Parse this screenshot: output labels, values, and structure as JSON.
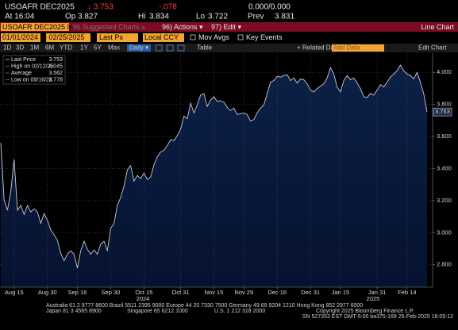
{
  "header": {
    "ticker": "USOAFR DEC2025",
    "last": "↓ 3.753",
    "change": "-.078",
    "bid_ask": "0.000/0.000",
    "time": "At 16:04",
    "open_label": "Op",
    "open": "3.827",
    "high_label": "Hi",
    "high": "3.834",
    "low_label": "Lo",
    "low": "3.722",
    "prev_label": "Prev",
    "prev": "3.831"
  },
  "menu_bar": {
    "security": "USOAFR DEC2025 In",
    "suggested": "96 Suggested Charts »",
    "actions": "96) Actions ▾",
    "edit": "97) Edit ▾",
    "view": "Line Chart"
  },
  "range_bar": {
    "start": "01/01/2024",
    "end": "- 02/25/2025",
    "field": "Last Px",
    "currency": "Local CCY",
    "mov_avgs": "Mov Avgs",
    "key_events": "Key Events"
  },
  "period_bar": {
    "periods": [
      "1D",
      "3D",
      "1M",
      "6M",
      "YTD",
      "1Y",
      "5Y",
      "Max"
    ],
    "frequency": "Daily ▾",
    "table": "Table",
    "related": "+ Related Dat",
    "add_data": "Add Data",
    "edit_chart": "Edit Chart"
  },
  "chart_data": {
    "type": "area",
    "color": "#c8ccd4",
    "fill": "#0c2046",
    "legend_stats": [
      {
        "label": "Last Price",
        "value": 3.753
      },
      {
        "label": "High on 02/12/25",
        "value": 4.045
      },
      {
        "label": "Average",
        "value": 3.562
      },
      {
        "label": "Low on 09/16/24",
        "value": 2.778
      }
    ],
    "categories": [
      null,
      null,
      null,
      null,
      "Aug 15",
      null,
      null,
      null,
      null,
      null,
      null,
      null,
      null,
      null,
      "Aug 30",
      null,
      null,
      null,
      null,
      null,
      null,
      null,
      null,
      "Sep 16",
      null,
      null,
      null,
      null,
      null,
      null,
      null,
      null,
      null,
      "Sep 30",
      null,
      null,
      null,
      null,
      null,
      null,
      null,
      null,
      null,
      "Oct 15",
      null,
      null,
      null,
      null,
      null,
      null,
      null,
      null,
      null,
      null,
      "Oct 31",
      null,
      null,
      null,
      null,
      null,
      null,
      null,
      null,
      null,
      "Nov 15",
      null,
      null,
      null,
      null,
      null,
      null,
      null,
      null,
      "Nov 29",
      null,
      null,
      null,
      null,
      null,
      null,
      null,
      null,
      null,
      "Dec 16",
      null,
      null,
      null,
      null,
      null,
      null,
      null,
      null,
      null,
      "Dec 31",
      null,
      null,
      null,
      null,
      null,
      null,
      null,
      null,
      "Jan 15",
      null,
      null,
      null,
      null,
      null,
      null,
      null,
      null,
      null,
      null,
      "Jan 31",
      null,
      null,
      null,
      null,
      null,
      null,
      null,
      null,
      "Feb 14",
      null,
      null,
      null,
      null,
      null,
      null
    ],
    "values": [
      3.56,
      3.205,
      3.14,
      3.256,
      3.458,
      3.14,
      3.17,
      3.114,
      3.17,
      3.129,
      3.149,
      3.129,
      3.058,
      3.119,
      3.078,
      3.018,
      2.987,
      2.952,
      2.871,
      2.825,
      2.866,
      2.886,
      2.866,
      2.778,
      2.886,
      2.947,
      2.896,
      2.866,
      2.891,
      2.866,
      2.927,
      2.947,
      2.886,
      3.028,
      3.058,
      3.17,
      3.22,
      3.291,
      3.392,
      3.418,
      3.322,
      3.357,
      3.337,
      3.372,
      3.332,
      3.347,
      3.423,
      3.473,
      3.504,
      3.514,
      3.544,
      3.58,
      3.575,
      3.605,
      3.646,
      3.727,
      3.711,
      3.808,
      3.747,
      3.797,
      3.858,
      3.868,
      3.787,
      3.828,
      3.848,
      3.818,
      3.823,
      3.813,
      3.782,
      3.762,
      3.777,
      3.737,
      3.742,
      3.747,
      3.737,
      3.696,
      3.706,
      3.747,
      3.777,
      3.797,
      3.868,
      3.939,
      3.949,
      3.975,
      3.97,
      3.98,
      3.985,
      3.949,
      3.965,
      3.934,
      3.959,
      3.954,
      3.929,
      3.889,
      3.878,
      3.899,
      3.914,
      3.929,
      3.965,
      4.03,
      3.99,
      3.909,
      3.878,
      3.949,
      3.98,
      3.954,
      3.965,
      3.934,
      3.899,
      3.848,
      3.843,
      3.868,
      3.858,
      3.889,
      3.924,
      3.909,
      3.939,
      3.97,
      3.99,
      4.01,
      4.045,
      4.01,
      3.99,
      3.98,
      3.959,
      4.0,
      3.939,
      3.868,
      3.753
    ],
    "year_labels": [
      "2024",
      "2025"
    ],
    "ylim": [
      2.66,
      4.12
    ],
    "yticks": [
      {
        "value": 2.8,
        "label": "2.800"
      },
      {
        "value": 3.0,
        "label": "3.000"
      },
      {
        "value": 3.2,
        "label": "3.200"
      },
      {
        "value": 3.4,
        "label": "3.400"
      },
      {
        "value": 3.6,
        "label": "3.600"
      },
      {
        "value": 3.8,
        "label": "3.800"
      },
      {
        "value": 4.0,
        "label": "4.000"
      }
    ],
    "grid": true
  },
  "footer": {
    "line1": "Australia 61 2 9777 8600 Brazil 5511 2395 9000 Europe 44 20 7330 7500 Germany 49 69 9204 1210 Hong Kong 852 2977 6000",
    "line2a": "Japan 81 3 4565 8900",
    "line2b": "Singapore 65 6212 1000",
    "line2c": "U.S. 1 212 318 2000",
    "line2d": "Copyright 2025 Bloomberg Finance L.P.",
    "line3": "SN 527353 EST  GMT-5:00 ba375-169 25-Feb-2025 16:05:12"
  }
}
